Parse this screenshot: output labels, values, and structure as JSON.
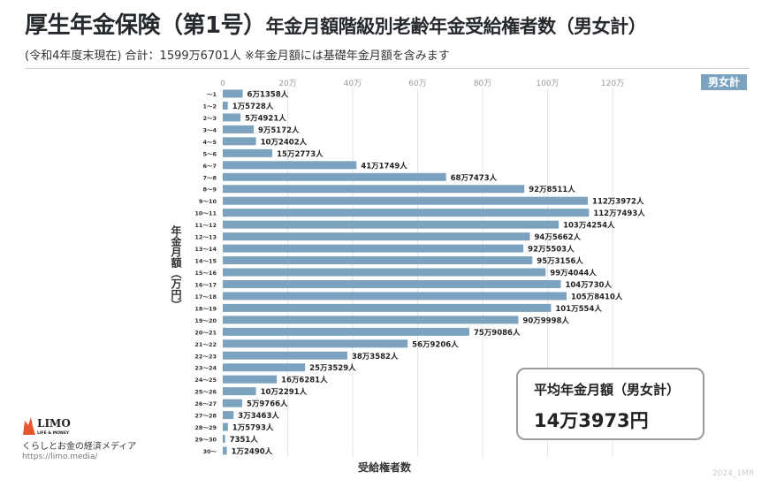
{
  "header": {
    "title_main": "厚生年金保険（第1号）",
    "title_rest": "年金月額階級別老齢年金受給権者数（男女計）",
    "subtitle": "(令和4年度末現在) 合計：1599万6701人 ※年金月額には基礎年金月額を含みます",
    "badge": "男女計"
  },
  "summary": {
    "label": "平均年金月額（男女計）",
    "value": "14万3973円"
  },
  "branding": {
    "logo_text": "LIMO",
    "logo_sub": "LIFE & MONEY",
    "tagline": "くらしとお金の経済メディア",
    "url": "https://limo.media/",
    "watermark": "2024_1MR"
  },
  "colors": {
    "bar": "#7ba3bf",
    "grid": "#e3e6e8",
    "accent": "#e4572e"
  },
  "chart_data": {
    "type": "bar",
    "orientation": "horizontal",
    "title": "厚生年金保険（第1号）年金月額階級別老齢年金受給権者数（男女計）",
    "xlabel": "受給権者数",
    "ylabel": "年金月額（万円）",
    "xlim": [
      0,
      120
    ],
    "x_unit": "万人",
    "x_ticks": [
      "0",
      "20万",
      "40万",
      "60万",
      "80万",
      "100万",
      "120万"
    ],
    "x_tick_values": [
      0,
      20,
      40,
      60,
      80,
      100,
      120
    ],
    "grid": true,
    "categories": [
      "～1",
      "1～2",
      "2～3",
      "3～4",
      "4～5",
      "5～6",
      "6～7",
      "7～8",
      "8～9",
      "9～10",
      "10～11",
      "11～12",
      "12～13",
      "13～14",
      "14～15",
      "15～16",
      "16～17",
      "17～18",
      "18～19",
      "19～20",
      "20～21",
      "21～22",
      "22～23",
      "23～24",
      "24～25",
      "25～26",
      "26～27",
      "27～28",
      "28～29",
      "29～30",
      "30～"
    ],
    "values": [
      6.1358,
      1.5728,
      5.4921,
      9.5172,
      10.2402,
      15.2773,
      41.1749,
      68.7473,
      92.8511,
      112.3972,
      112.7493,
      103.4254,
      94.5662,
      92.5503,
      95.3156,
      99.4044,
      104.073,
      105.841,
      101.0554,
      90.9998,
      75.9086,
      56.9206,
      38.3582,
      25.3529,
      16.6281,
      10.2291,
      5.9766,
      3.3463,
      1.5793,
      0.7351,
      1.249
    ],
    "data_labels": [
      "6万1358人",
      "1万5728人",
      "5万4921人",
      "9万5172人",
      "10万2402人",
      "15万2773人",
      "41万1749人",
      "68万7473人",
      "92万8511人",
      "112万3972人",
      "112万7493人",
      "103万4254人",
      "94万5662人",
      "92万5503人",
      "95万3156人",
      "99万4044人",
      "104万730人",
      "105万8410人",
      "101万554人",
      "90万9998人",
      "75万9086人",
      "56万9206人",
      "38万3582人",
      "25万3529人",
      "16万6281人",
      "10万2291人",
      "5万9766人",
      "3万3463人",
      "1万5793人",
      "7351人",
      "1万2490人"
    ]
  }
}
